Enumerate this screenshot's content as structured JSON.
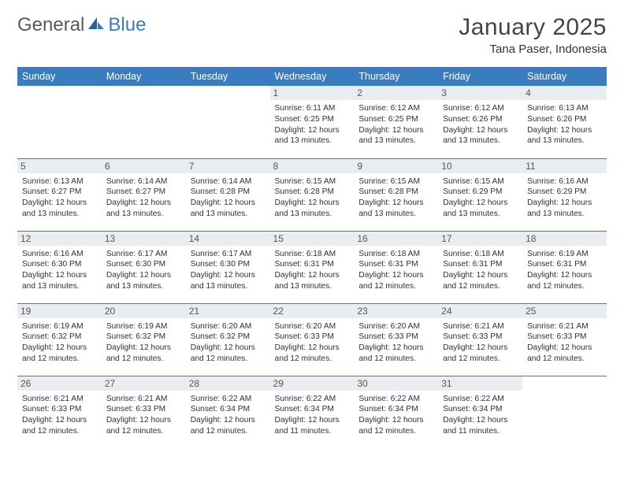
{
  "brand": {
    "word1": "General",
    "word2": "Blue"
  },
  "title": "January 2025",
  "location": "Tana Paser, Indonesia",
  "header_bg": "#3b7bbf",
  "daynum_bg": "#e9edf1",
  "day_headers": [
    "Sunday",
    "Monday",
    "Tuesday",
    "Wednesday",
    "Thursday",
    "Friday",
    "Saturday"
  ],
  "weeks": [
    [
      {
        "n": "",
        "sr": "",
        "ss": "",
        "dl": ""
      },
      {
        "n": "",
        "sr": "",
        "ss": "",
        "dl": ""
      },
      {
        "n": "",
        "sr": "",
        "ss": "",
        "dl": ""
      },
      {
        "n": "1",
        "sr": "6:11 AM",
        "ss": "6:25 PM",
        "dl": "12 hours and 13 minutes."
      },
      {
        "n": "2",
        "sr": "6:12 AM",
        "ss": "6:25 PM",
        "dl": "12 hours and 13 minutes."
      },
      {
        "n": "3",
        "sr": "6:12 AM",
        "ss": "6:26 PM",
        "dl": "12 hours and 13 minutes."
      },
      {
        "n": "4",
        "sr": "6:13 AM",
        "ss": "6:26 PM",
        "dl": "12 hours and 13 minutes."
      }
    ],
    [
      {
        "n": "5",
        "sr": "6:13 AM",
        "ss": "6:27 PM",
        "dl": "12 hours and 13 minutes."
      },
      {
        "n": "6",
        "sr": "6:14 AM",
        "ss": "6:27 PM",
        "dl": "12 hours and 13 minutes."
      },
      {
        "n": "7",
        "sr": "6:14 AM",
        "ss": "6:28 PM",
        "dl": "12 hours and 13 minutes."
      },
      {
        "n": "8",
        "sr": "6:15 AM",
        "ss": "6:28 PM",
        "dl": "12 hours and 13 minutes."
      },
      {
        "n": "9",
        "sr": "6:15 AM",
        "ss": "6:28 PM",
        "dl": "12 hours and 13 minutes."
      },
      {
        "n": "10",
        "sr": "6:15 AM",
        "ss": "6:29 PM",
        "dl": "12 hours and 13 minutes."
      },
      {
        "n": "11",
        "sr": "6:16 AM",
        "ss": "6:29 PM",
        "dl": "12 hours and 13 minutes."
      }
    ],
    [
      {
        "n": "12",
        "sr": "6:16 AM",
        "ss": "6:30 PM",
        "dl": "12 hours and 13 minutes."
      },
      {
        "n": "13",
        "sr": "6:17 AM",
        "ss": "6:30 PM",
        "dl": "12 hours and 13 minutes."
      },
      {
        "n": "14",
        "sr": "6:17 AM",
        "ss": "6:30 PM",
        "dl": "12 hours and 13 minutes."
      },
      {
        "n": "15",
        "sr": "6:18 AM",
        "ss": "6:31 PM",
        "dl": "12 hours and 13 minutes."
      },
      {
        "n": "16",
        "sr": "6:18 AM",
        "ss": "6:31 PM",
        "dl": "12 hours and 12 minutes."
      },
      {
        "n": "17",
        "sr": "6:18 AM",
        "ss": "6:31 PM",
        "dl": "12 hours and 12 minutes."
      },
      {
        "n": "18",
        "sr": "6:19 AM",
        "ss": "6:31 PM",
        "dl": "12 hours and 12 minutes."
      }
    ],
    [
      {
        "n": "19",
        "sr": "6:19 AM",
        "ss": "6:32 PM",
        "dl": "12 hours and 12 minutes."
      },
      {
        "n": "20",
        "sr": "6:19 AM",
        "ss": "6:32 PM",
        "dl": "12 hours and 12 minutes."
      },
      {
        "n": "21",
        "sr": "6:20 AM",
        "ss": "6:32 PM",
        "dl": "12 hours and 12 minutes."
      },
      {
        "n": "22",
        "sr": "6:20 AM",
        "ss": "6:33 PM",
        "dl": "12 hours and 12 minutes."
      },
      {
        "n": "23",
        "sr": "6:20 AM",
        "ss": "6:33 PM",
        "dl": "12 hours and 12 minutes."
      },
      {
        "n": "24",
        "sr": "6:21 AM",
        "ss": "6:33 PM",
        "dl": "12 hours and 12 minutes."
      },
      {
        "n": "25",
        "sr": "6:21 AM",
        "ss": "6:33 PM",
        "dl": "12 hours and 12 minutes."
      }
    ],
    [
      {
        "n": "26",
        "sr": "6:21 AM",
        "ss": "6:33 PM",
        "dl": "12 hours and 12 minutes."
      },
      {
        "n": "27",
        "sr": "6:21 AM",
        "ss": "6:33 PM",
        "dl": "12 hours and 12 minutes."
      },
      {
        "n": "28",
        "sr": "6:22 AM",
        "ss": "6:34 PM",
        "dl": "12 hours and 12 minutes."
      },
      {
        "n": "29",
        "sr": "6:22 AM",
        "ss": "6:34 PM",
        "dl": "12 hours and 11 minutes."
      },
      {
        "n": "30",
        "sr": "6:22 AM",
        "ss": "6:34 PM",
        "dl": "12 hours and 12 minutes."
      },
      {
        "n": "31",
        "sr": "6:22 AM",
        "ss": "6:34 PM",
        "dl": "12 hours and 11 minutes."
      },
      {
        "n": "",
        "sr": "",
        "ss": "",
        "dl": ""
      }
    ]
  ],
  "labels": {
    "sunrise": "Sunrise: ",
    "sunset": "Sunset: ",
    "daylight": "Daylight: "
  }
}
